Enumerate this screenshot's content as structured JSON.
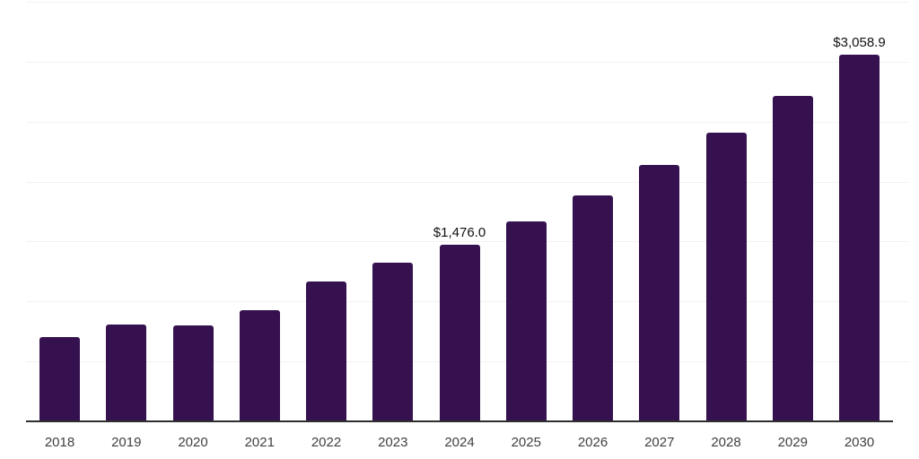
{
  "chart_data": {
    "type": "bar",
    "title": "",
    "xlabel": "",
    "ylabel": "",
    "categories": [
      "2018",
      "2019",
      "2020",
      "2021",
      "2022",
      "2023",
      "2024",
      "2025",
      "2026",
      "2027",
      "2028",
      "2029",
      "2030"
    ],
    "values": [
      700,
      808,
      800,
      928,
      1164,
      1324,
      1476.0,
      1670,
      1882,
      2139,
      2406,
      2717,
      3058.9
    ],
    "data_labels": {
      "2024": "$1,476.0",
      "2030": "$3,058.9"
    },
    "ylim": [
      0,
      3500
    ],
    "gridline_step": 500,
    "grid": "horizontal-only",
    "legend": "none",
    "colors": {
      "bar": "#351150",
      "axis_line": "#2e2e2e",
      "gridline": "#f2f2f2",
      "tick_label": "#404040",
      "data_label": "#111111"
    }
  }
}
